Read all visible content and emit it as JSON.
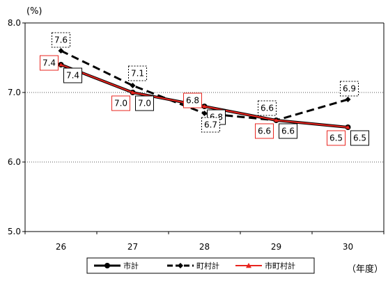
{
  "chart_data": {
    "type": "line",
    "y_unit_label": "(%)",
    "x_unit_label": "（年度）",
    "categories": [
      "26",
      "27",
      "28",
      "29",
      "30"
    ],
    "ylim": [
      5.0,
      8.0
    ],
    "yticks": [
      "8.0",
      "7.0",
      "6.0",
      "5.0"
    ],
    "ytick_values": [
      8.0,
      7.0,
      6.0,
      5.0
    ],
    "grid": true,
    "legend_position": "bottom",
    "series": [
      {
        "name": "市計",
        "values": [
          7.4,
          7.0,
          6.8,
          6.6,
          6.5
        ],
        "labels": [
          "7.4",
          "7.0",
          "6.8",
          "6.6",
          "6.5"
        ],
        "color": "#000000",
        "style": "solid",
        "marker": "circle"
      },
      {
        "name": "町村計",
        "values": [
          7.6,
          7.1,
          6.7,
          6.6,
          6.9
        ],
        "labels": [
          "7.6",
          "7.1",
          "6.7",
          "6.6",
          "6.9"
        ],
        "color": "#000000",
        "style": "dashed",
        "marker": "diamond"
      },
      {
        "name": "市町村計",
        "values": [
          7.4,
          7.0,
          6.8,
          6.6,
          6.5
        ],
        "labels": [
          "7.4",
          "7.0",
          "6.8",
          "6.6",
          "6.5"
        ],
        "color": "#e8251f",
        "style": "solid",
        "marker": "triangle"
      }
    ]
  }
}
